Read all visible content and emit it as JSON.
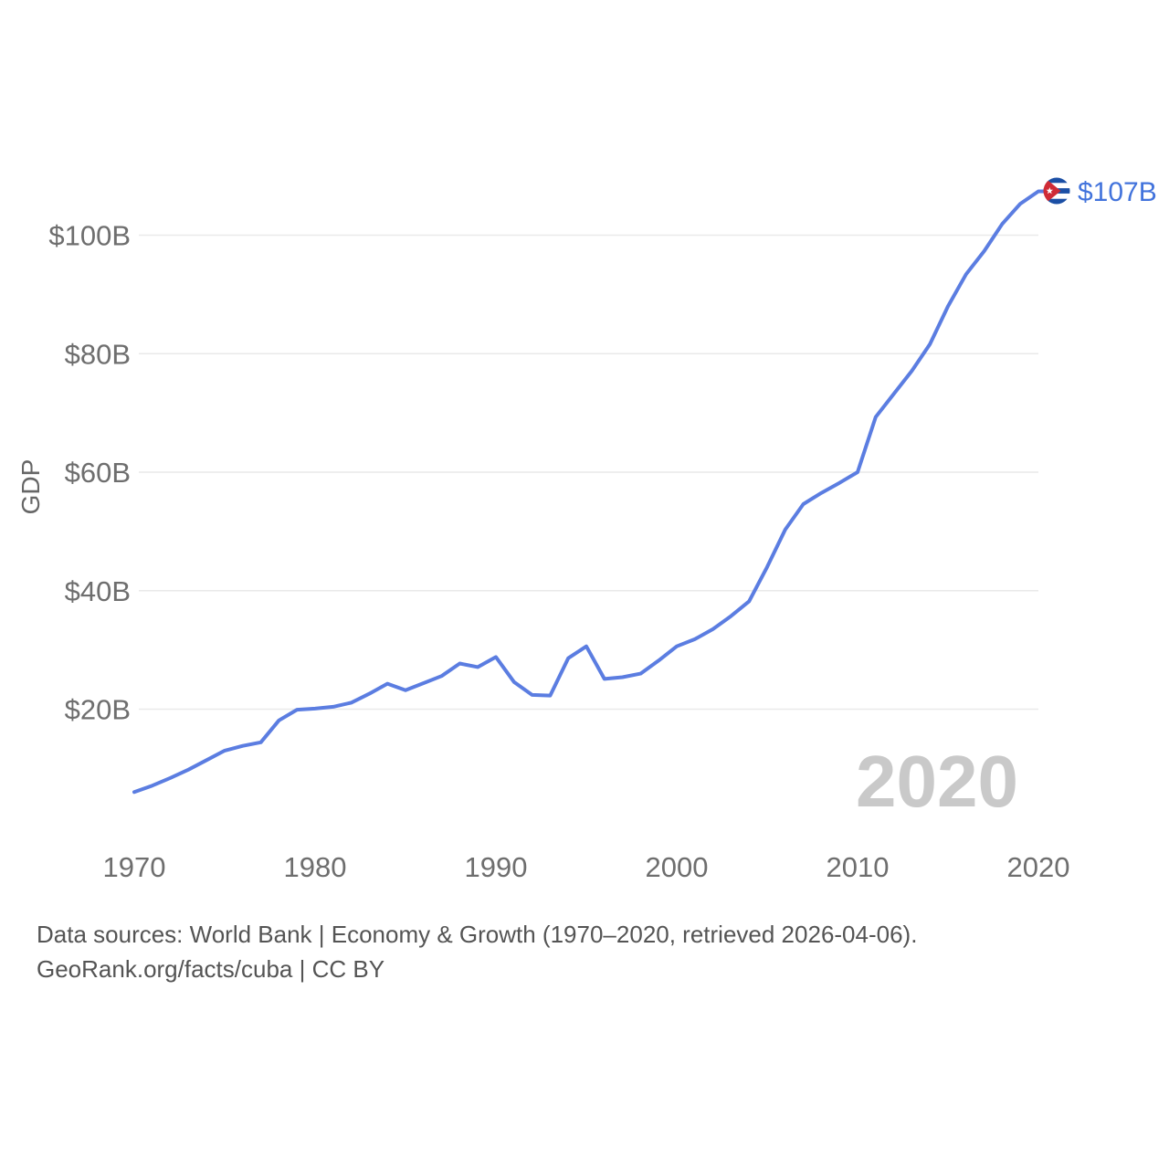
{
  "chart_data": {
    "type": "line",
    "title": "",
    "subtitle": "",
    "country": "Cuba",
    "metric": "GDP",
    "xlabel": "",
    "ylabel": "GDP",
    "legend": "none",
    "grid": "horizontal",
    "x_range_years": [
      1970,
      2020
    ],
    "x_ticks": [
      1970,
      1980,
      1990,
      2000,
      2010,
      2020
    ],
    "y_ticks": [
      {
        "value": 20,
        "label": "$20B"
      },
      {
        "value": 40,
        "label": "$40B"
      },
      {
        "value": 60,
        "label": "$60B"
      },
      {
        "value": 80,
        "label": "$80B"
      },
      {
        "value": 100,
        "label": "$100B"
      }
    ],
    "x": [
      1970,
      1971,
      1972,
      1973,
      1974,
      1975,
      1976,
      1977,
      1978,
      1979,
      1980,
      1981,
      1982,
      1983,
      1984,
      1985,
      1986,
      1987,
      1988,
      1989,
      1990,
      1991,
      1992,
      1993,
      1994,
      1995,
      1996,
      1997,
      1998,
      1999,
      2000,
      2001,
      2002,
      2003,
      2004,
      2005,
      2006,
      2007,
      2008,
      2009,
      2010,
      2011,
      2012,
      2013,
      2014,
      2015,
      2016,
      2017,
      2018,
      2019,
      2020
    ],
    "values": [
      6.0,
      7.1,
      8.4,
      9.8,
      11.4,
      13.0,
      13.8,
      14.4,
      18.1,
      19.9,
      20.1,
      20.4,
      21.1,
      22.6,
      24.3,
      23.2,
      24.4,
      25.6,
      27.7,
      27.1,
      28.8,
      24.6,
      22.4,
      22.3,
      28.6,
      30.6,
      25.1,
      25.4,
      26.0,
      28.2,
      30.6,
      31.8,
      33.5,
      35.7,
      38.2,
      44.0,
      50.3,
      54.6,
      56.5,
      58.2,
      60.0,
      69.3,
      73.2,
      77.1,
      81.6,
      88.0,
      93.4,
      97.3,
      101.9,
      105.3,
      107.4
    ],
    "units": "billions USD",
    "end_label": "$107B",
    "end_marker": "cuba-flag",
    "watermark": "2020"
  },
  "footer": {
    "line1": "Data sources: World Bank | Economy & Growth (1970–2020, retrieved 2026-04-06).",
    "line2": "GeoRank.org/facts/cuba | CC BY"
  },
  "colors": {
    "line": "#5b7de1",
    "end_label": "#4273dc",
    "axis_text": "#6e6e6e",
    "footer_text": "#545454",
    "watermark": "#c9c9c9",
    "gridline": "#e9e9e9",
    "flag_blue": "#1b4fa5",
    "flag_red": "#cf2b36",
    "flag_white": "#ffffff",
    "background": "#ffffff"
  }
}
